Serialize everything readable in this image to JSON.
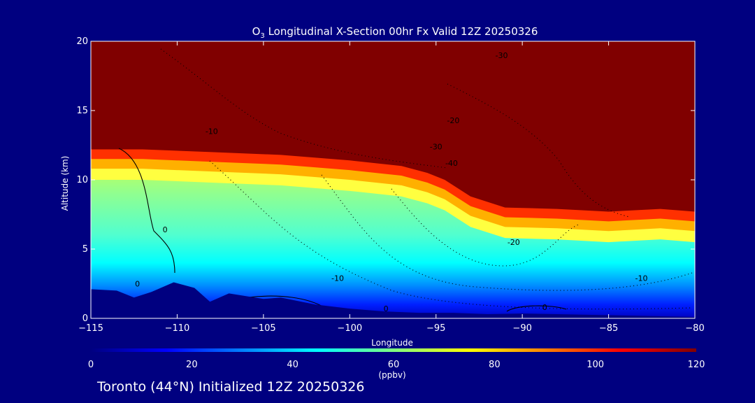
{
  "chart_data": {
    "type": "heatmap",
    "title": {
      "species": "O",
      "subscript": "3",
      "text": " Longitudinal X-Section 00hr  Fx Valid 12Z 20250326"
    },
    "xlabel": "Longitude",
    "ylabel": "Altitude (km)",
    "xlim": [
      -115,
      -80
    ],
    "ylim": [
      0,
      20
    ],
    "x_ticks": [
      -115,
      -110,
      -105,
      -100,
      -95,
      -90,
      -85,
      -80
    ],
    "x_tick_labels": [
      "−115",
      "−110",
      "−105",
      "−100",
      "−95",
      "−90",
      "−85",
      "−80"
    ],
    "y_ticks": [
      0,
      5,
      10,
      15,
      20
    ],
    "y_tick_labels": [
      "0",
      "5",
      "10",
      "15",
      "20"
    ],
    "colorbar": {
      "label": "(ppbv)",
      "min": 0,
      "max": 120,
      "ticks": [
        0,
        20,
        40,
        60,
        80,
        100,
        120
      ],
      "tick_labels": [
        "0",
        "20",
        "40",
        "60",
        "80",
        "100",
        "120"
      ],
      "colors": [
        "#000080",
        "#0000ff",
        "#0080ff",
        "#00ffff",
        "#80ff80",
        "#ffff00",
        "#ff8000",
        "#ff0000",
        "#800000"
      ]
    },
    "ozone_threshold_altitude_km": {
      "x": [
        -115,
        -112,
        -108,
        -104,
        -100,
        -97,
        -95.5,
        -94.5,
        -93,
        -91,
        -88,
        -85,
        -82,
        -80
      ],
      "y": [
        12.2,
        12.2,
        12.0,
        11.8,
        11.4,
        11.0,
        10.5,
        10.0,
        8.8,
        8.0,
        7.9,
        7.7,
        7.9,
        7.7
      ]
    },
    "terrain_altitude_km": {
      "x": [
        -115,
        -113.5,
        -112.5,
        -111.5,
        -110.2,
        -109,
        -108.1,
        -107,
        -105,
        -104,
        -102,
        -100,
        -98,
        -96,
        -94,
        -92,
        -90,
        -88,
        -86,
        -84,
        -82,
        -80
      ],
      "y": [
        2.1,
        2.0,
        1.5,
        1.9,
        2.6,
        2.2,
        1.2,
        1.8,
        1.4,
        1.5,
        1.0,
        0.7,
        0.5,
        0.4,
        0.4,
        0.3,
        0.35,
        0.3,
        0.25,
        0.2,
        0.15,
        0.1
      ]
    },
    "contour_labels": [
      {
        "text": "-30",
        "x": -91.2,
        "y": 18.8
      },
      {
        "text": "-10",
        "x": -108.0,
        "y": 13.3
      },
      {
        "text": "-20",
        "x": -94.0,
        "y": 14.1
      },
      {
        "text": "-30",
        "x": -95.0,
        "y": 12.2
      },
      {
        "text": "-40",
        "x": -94.1,
        "y": 11.0
      },
      {
        "text": "0",
        "x": -110.7,
        "y": 6.2
      },
      {
        "text": "-20",
        "x": -90.5,
        "y": 5.3
      },
      {
        "text": "-10",
        "x": -100.7,
        "y": 2.7
      },
      {
        "text": "0",
        "x": -88.7,
        "y": 0.6
      },
      {
        "text": "-10",
        "x": -83.1,
        "y": 2.7
      },
      {
        "text": "0",
        "x": -112.3,
        "y": 2.3
      },
      {
        "text": "0",
        "x": -97.9,
        "y": 0.5
      }
    ]
  },
  "caption": "Toronto (44°N) Initialized 12Z 20250326"
}
